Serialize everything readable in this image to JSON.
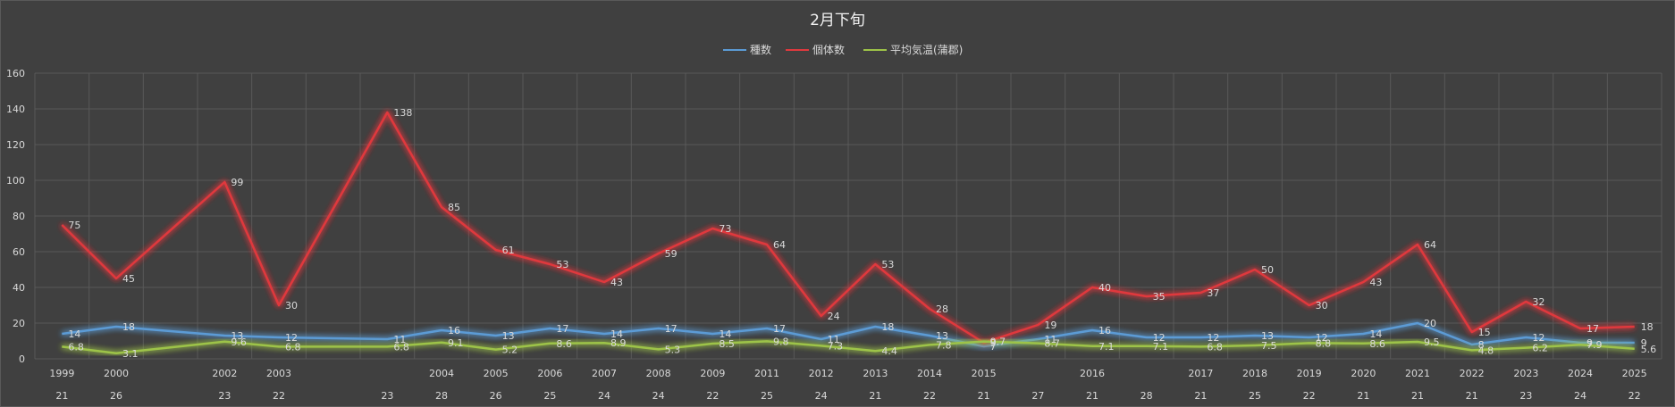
{
  "chart_data": {
    "type": "line",
    "title": "2月下旬",
    "x_years": [
      "1999",
      "2000",
      "",
      "2002",
      "2003",
      "",
      "",
      "2004",
      "2005",
      "2006",
      "2007",
      "2008",
      "2009",
      "2011",
      "2012",
      "2013",
      "2014",
      "2015",
      "",
      "2016",
      "",
      "2017",
      "2018",
      "2019",
      "2020",
      "2021",
      "2022",
      "2023",
      "2024",
      "2025"
    ],
    "x_days": [
      "21",
      "26",
      "",
      "23",
      "22",
      "",
      "23",
      "28",
      "26",
      "25",
      "24",
      "24",
      "22",
      "25",
      "24",
      "21",
      "22",
      "21",
      "27",
      "21",
      "28",
      "21",
      "25",
      "22",
      "21",
      "21",
      "21",
      "23",
      "24",
      "22"
    ],
    "series": [
      {
        "name": "種数",
        "color": "#5b9bd5",
        "values": [
          14,
          18,
          null,
          13,
          12,
          null,
          11,
          16,
          13,
          17,
          14,
          17,
          14,
          17,
          11,
          18,
          13,
          7,
          11,
          16,
          12,
          12,
          13,
          12,
          14,
          20,
          8,
          12,
          9,
          9
        ],
        "labels": [
          "14",
          "18",
          "",
          "13",
          "12",
          "",
          "11",
          "16",
          "13",
          "17",
          "14",
          "17",
          "14",
          "17",
          "11",
          "18",
          "13",
          "7",
          "11",
          "16",
          "12",
          "12",
          "13",
          "12",
          "14",
          "20",
          "8",
          "12",
          "9",
          "9"
        ]
      },
      {
        "name": "個体数",
        "color": "#e0393e",
        "values": [
          75,
          45,
          null,
          99,
          30,
          null,
          138,
          85,
          61,
          53,
          43,
          59,
          73,
          64,
          24,
          53,
          28,
          9,
          19,
          40,
          35,
          37,
          50,
          30,
          43,
          64,
          15,
          32,
          17,
          18
        ],
        "labels": [
          "75",
          "45",
          "",
          "99",
          "30",
          "",
          "138",
          "85",
          "61",
          "53",
          "43",
          "59",
          "73",
          "64",
          "24",
          "53",
          "28",
          "9",
          "19",
          "40",
          "35",
          "37",
          "50",
          "30",
          "43",
          "64",
          "15",
          "32",
          "17",
          "18"
        ]
      },
      {
        "name": "平均気温(蒲郡)",
        "color": "#9dc348",
        "values": [
          6.8,
          3.1,
          null,
          9.6,
          6.8,
          null,
          6.8,
          9.1,
          5.2,
          8.6,
          8.9,
          5.3,
          8.5,
          9.8,
          7.3,
          4.4,
          7.8,
          9.7,
          8.7,
          7.1,
          7.1,
          6.8,
          7.5,
          8.8,
          8.6,
          9.5,
          4.8,
          6.2,
          7.9,
          5.6
        ],
        "labels": [
          "6.8",
          "3.1",
          "",
          "9.6",
          "6.8",
          "",
          "6.8",
          "9.1",
          "5.2",
          "8.6",
          "8.9",
          "5.3",
          "8.5",
          "9.8",
          "7.3",
          "4.4",
          "7.8",
          "9.7",
          "8.7",
          "7.1",
          "7.1",
          "6.8",
          "7.5",
          "8.8",
          "8.6",
          "9.5",
          "4.8",
          "6.2",
          "7.9",
          "5.6"
        ]
      }
    ],
    "y_ticks": [
      "0",
      "20",
      "40",
      "60",
      "80",
      "100",
      "120",
      "140",
      "160"
    ],
    "ylim": [
      0,
      160
    ],
    "grid": true,
    "legend_position": "top"
  }
}
